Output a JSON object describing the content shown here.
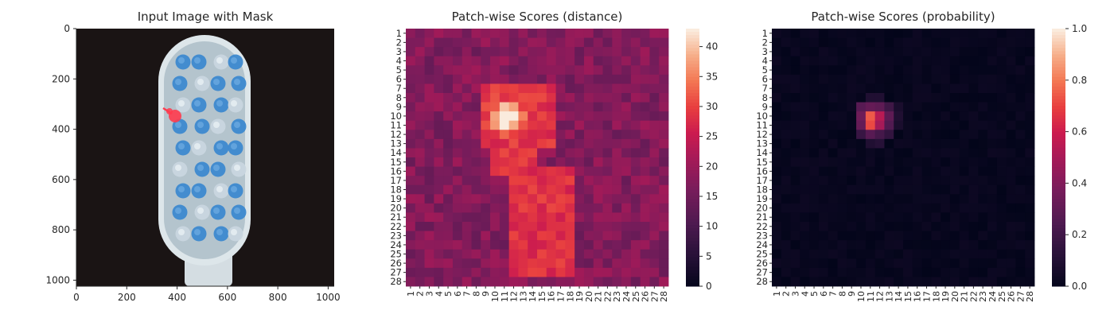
{
  "chart_data": [
    {
      "type": "image",
      "title": "Input Image with Mask",
      "xlim": [
        0,
        1024
      ],
      "ylim": [
        1024,
        0
      ],
      "xticks": [
        0,
        200,
        400,
        600,
        800,
        1000
      ],
      "yticks": [
        0,
        200,
        400,
        600,
        800,
        1000
      ],
      "xtick_labels": [
        "0",
        "200",
        "400",
        "600",
        "800",
        "1000"
      ],
      "ytick_labels": [
        "0",
        "200",
        "400",
        "600",
        "800",
        "1000"
      ],
      "colors": {
        "background": "#1a1414",
        "brush_head": "#b7c7cf",
        "bristle": "#3d89cf",
        "mask": "#ff3b4e"
      }
    },
    {
      "type": "heatmap",
      "title": "Patch-wise Scores (distance)",
      "rows": 28,
      "cols": 28,
      "row_labels": [
        "1",
        "2",
        "3",
        "4",
        "5",
        "6",
        "7",
        "8",
        "9",
        "10",
        "11",
        "12",
        "13",
        "14",
        "15",
        "16",
        "17",
        "18",
        "19",
        "20",
        "21",
        "22",
        "23",
        "24",
        "25",
        "26",
        "27",
        "28"
      ],
      "col_labels": [
        "1",
        "2",
        "3",
        "4",
        "5",
        "6",
        "7",
        "8",
        "9",
        "10",
        "11",
        "12",
        "13",
        "14",
        "15",
        "16",
        "17",
        "18",
        "19",
        "20",
        "21",
        "22",
        "23",
        "24",
        "25",
        "26",
        "27",
        "28"
      ],
      "colorbar": {
        "min": 0,
        "max": 43,
        "ticks": [
          0,
          5,
          10,
          15,
          20,
          25,
          30,
          35,
          40
        ],
        "tick_labels": [
          "0",
          "5",
          "10",
          "15",
          "20",
          "25",
          "30",
          "35",
          "40"
        ],
        "colormap": "rocket"
      },
      "value_description_estimated": {
        "background_range": [
          13,
          24
        ],
        "hotspot_center": {
          "row": 10,
          "col": 11,
          "value": 43
        },
        "elevated_region": {
          "rows": [
            7,
            27
          ],
          "cols": [
            10,
            18
          ],
          "value_range": [
            25,
            32
          ]
        }
      }
    },
    {
      "type": "heatmap",
      "title": "Patch-wise Scores (probability)",
      "rows": 28,
      "cols": 28,
      "row_labels": [
        "1",
        "2",
        "3",
        "4",
        "5",
        "6",
        "7",
        "8",
        "9",
        "10",
        "11",
        "12",
        "13",
        "14",
        "15",
        "16",
        "17",
        "18",
        "19",
        "20",
        "21",
        "22",
        "23",
        "24",
        "25",
        "26",
        "27",
        "28"
      ],
      "col_labels": [
        "1",
        "2",
        "3",
        "4",
        "5",
        "6",
        "7",
        "8",
        "9",
        "10",
        "11",
        "12",
        "13",
        "14",
        "15",
        "16",
        "17",
        "18",
        "19",
        "20",
        "21",
        "22",
        "23",
        "24",
        "25",
        "26",
        "27",
        "28"
      ],
      "colorbar": {
        "min": 0.0,
        "max": 1.0,
        "ticks": [
          0.0,
          0.2,
          0.4,
          0.6,
          0.8,
          1.0
        ],
        "tick_labels": [
          "0.0",
          "0.2",
          "0.4",
          "0.6",
          "0.8",
          "1.0"
        ],
        "colormap": "rocket"
      },
      "peak_cells": [
        {
          "row": 10,
          "col": 11,
          "value": 0.75
        },
        {
          "row": 11,
          "col": 11,
          "value": 0.72
        },
        {
          "row": 10,
          "col": 12,
          "value": 0.55
        },
        {
          "row": 11,
          "col": 12,
          "value": 0.5
        },
        {
          "row": 10,
          "col": 13,
          "value": 0.3
        },
        {
          "row": 9,
          "col": 11,
          "value": 0.32
        },
        {
          "row": 9,
          "col": 12,
          "value": 0.3
        },
        {
          "row": 9,
          "col": 10,
          "value": 0.28
        },
        {
          "row": 10,
          "col": 10,
          "value": 0.35
        },
        {
          "row": 11,
          "col": 10,
          "value": 0.32
        },
        {
          "row": 12,
          "col": 11,
          "value": 0.28
        },
        {
          "row": 12,
          "col": 12,
          "value": 0.22
        },
        {
          "row": 11,
          "col": 13,
          "value": 0.26
        },
        {
          "row": 9,
          "col": 13,
          "value": 0.2
        },
        {
          "row": 12,
          "col": 10,
          "value": 0.18
        },
        {
          "row": 8,
          "col": 11,
          "value": 0.1
        },
        {
          "row": 8,
          "col": 12,
          "value": 0.1
        },
        {
          "row": 12,
          "col": 13,
          "value": 0.16
        },
        {
          "row": 13,
          "col": 12,
          "value": 0.12
        },
        {
          "row": 13,
          "col": 11,
          "value": 0.1
        },
        {
          "row": 10,
          "col": 14,
          "value": 0.1
        },
        {
          "row": 11,
          "col": 14,
          "value": 0.08
        },
        {
          "row": 9,
          "col": 14,
          "value": 0.08
        }
      ],
      "background_value_range": [
        0.0,
        0.05
      ]
    }
  ]
}
